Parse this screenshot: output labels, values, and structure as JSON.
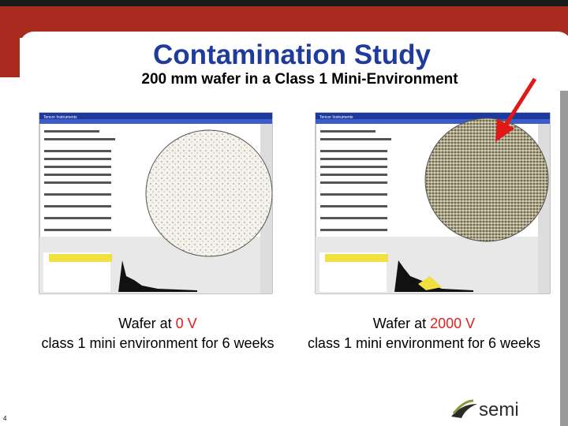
{
  "title": "Contamination Study",
  "subtitle": "200 mm wafer in a Class 1 Mini-Environment",
  "panels": [
    {
      "window_title": "Tencor Instruments",
      "caption_prefix": "Wafer at ",
      "voltage": "0 V",
      "caption_rest": "class 1 mini environment for 6 weeks"
    },
    {
      "window_title": "Tencor Instruments",
      "caption_prefix": "Wafer at ",
      "voltage": "2000 V",
      "caption_rest": "class 1 mini environment for 6 weeks"
    }
  ],
  "page_number": "4",
  "logo": "semi"
}
